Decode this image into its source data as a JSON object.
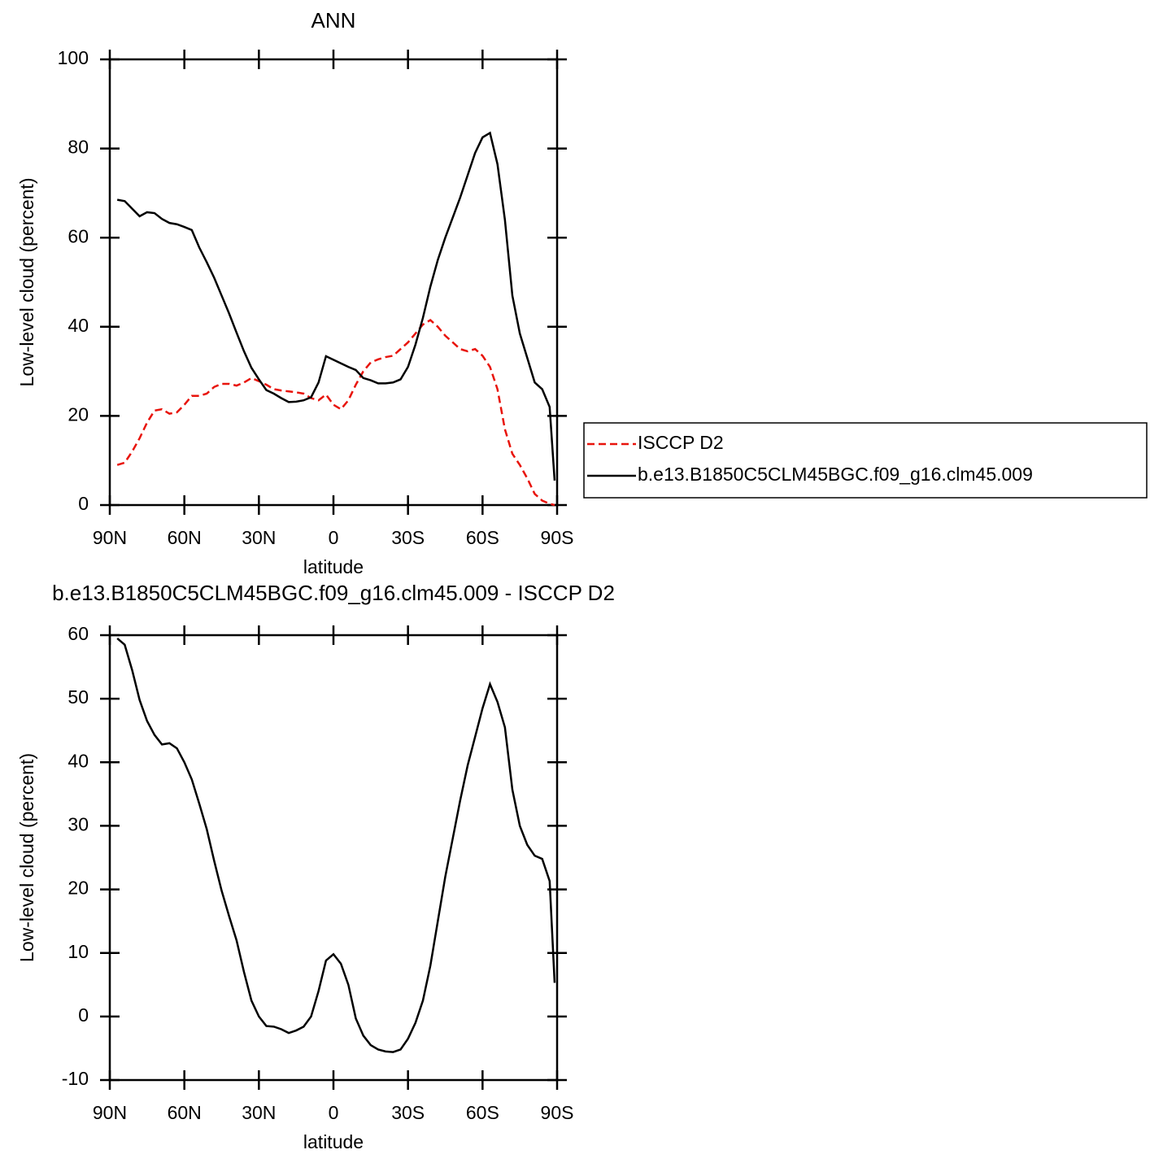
{
  "chart_data": [
    {
      "type": "line",
      "title": "ANN",
      "xlabel": "latitude",
      "ylabel": "Low-level cloud (percent)",
      "x": [
        87,
        84,
        81,
        78,
        75,
        72,
        69,
        66,
        63,
        60,
        57,
        54,
        51,
        48,
        45,
        42,
        39,
        36,
        33,
        30,
        27,
        24,
        21,
        18,
        15,
        12,
        9,
        6,
        3,
        0,
        -3,
        -6,
        -9,
        -12,
        -15,
        -18,
        -21,
        -24,
        -27,
        -30,
        -33,
        -36,
        -39,
        -42,
        -45,
        -48,
        -51,
        -54,
        -57,
        -60,
        -63,
        -66,
        -69,
        -72,
        -75,
        -78,
        -81,
        -84,
        -87,
        -89
      ],
      "series": [
        {
          "name": "ISCCP D2",
          "color": "#e8140c",
          "dashed": true,
          "values": [
            9,
            9.5,
            12,
            15,
            18.5,
            21.2,
            21.5,
            20.5,
            20.8,
            22.5,
            24.5,
            24.5,
            25,
            26.5,
            27.2,
            27.2,
            26.8,
            27.5,
            28.5,
            27.8,
            27,
            26,
            25.7,
            25.5,
            25.3,
            25,
            24,
            23.5,
            24.8,
            22.5,
            21.5,
            23.5,
            27,
            30,
            32,
            32.7,
            33.2,
            33.5,
            35,
            36.5,
            38.5,
            40.5,
            41.5,
            40,
            38,
            36.5,
            35,
            34.5,
            35,
            33.5,
            31,
            26,
            17,
            11.5,
            9,
            6,
            2.5,
            1,
            0.3,
            0
          ]
        },
        {
          "name": "b.e13.B1850C5CLM45BGC.f09_g16.clm45.009",
          "color": "#000000",
          "dashed": false,
          "values": [
            68.5,
            68.2,
            66.5,
            64.8,
            65.7,
            65.5,
            64.2,
            63.3,
            63,
            62.4,
            61.7,
            57.8,
            54.5,
            51,
            47,
            43,
            38.7,
            34.5,
            30.8,
            28.2,
            25.8,
            25,
            24,
            23.1,
            23.2,
            23.5,
            24.2,
            27.5,
            33.4,
            32.6,
            31.8,
            31,
            30.3,
            28.5,
            28,
            27.3,
            27.3,
            27.5,
            28.2,
            31,
            36,
            42,
            49,
            55,
            60,
            64.5,
            69,
            74,
            79,
            82.5,
            83.5,
            76.5,
            64,
            47,
            38.5,
            33,
            27.5,
            26,
            22,
            5.5
          ]
        }
      ],
      "xlim": [
        90,
        -90
      ],
      "xticks": [
        {
          "value": 90,
          "label": "90N"
        },
        {
          "value": 60,
          "label": "60N"
        },
        {
          "value": 30,
          "label": "30N"
        },
        0,
        {
          "value": -30,
          "label": "30S"
        },
        {
          "value": -60,
          "label": "60S"
        },
        {
          "value": -90,
          "label": "90S"
        }
      ],
      "ylim": [
        0,
        100
      ],
      "yticks": [
        0,
        20,
        40,
        60,
        80,
        100
      ],
      "legend": "right"
    },
    {
      "type": "line",
      "title": "b.e13.B1850C5CLM45BGC.f09_g16.clm45.009 - ISCCP D2",
      "xlabel": "latitude",
      "ylabel": "Low-level cloud (percent)",
      "x": [
        87,
        84,
        81,
        78,
        75,
        72,
        69,
        66,
        63,
        60,
        57,
        54,
        51,
        48,
        45,
        42,
        39,
        36,
        33,
        30,
        27,
        24,
        21,
        18,
        15,
        12,
        9,
        6,
        3,
        0,
        -3,
        -6,
        -9,
        -12,
        -15,
        -18,
        -21,
        -24,
        -27,
        -30,
        -33,
        -36,
        -39,
        -42,
        -45,
        -48,
        -51,
        -54,
        -57,
        -60,
        -63,
        -66,
        -69,
        -72,
        -75,
        -78,
        -81,
        -84,
        -87,
        -89
      ],
      "series": [
        {
          "color": "#000000",
          "dashed": false,
          "values": [
            59.5,
            58.5,
            54.5,
            49.8,
            46.5,
            44.3,
            42.8,
            43,
            42.2,
            40,
            37.3,
            33.5,
            29.5,
            24.5,
            19.8,
            15.8,
            12,
            7,
            2.5,
            0,
            -1.5,
            -1.6,
            -2,
            -2.6,
            -2.2,
            -1.6,
            0,
            4,
            8.8,
            9.8,
            8.3,
            5,
            -0.3,
            -3,
            -4.5,
            -5.2,
            -5.5,
            -5.6,
            -5.2,
            -3.5,
            -1,
            2.5,
            8,
            15,
            22,
            28,
            34,
            39.5,
            44,
            48.5,
            52.3,
            49.5,
            45.5,
            35.7,
            30,
            27,
            25.3,
            24.8,
            21.3,
            5.3
          ]
        }
      ],
      "xlim": [
        90,
        -90
      ],
      "xticks": [
        {
          "value": 90,
          "label": "90N"
        },
        {
          "value": 60,
          "label": "60N"
        },
        {
          "value": 30,
          "label": "30N"
        },
        0,
        {
          "value": -30,
          "label": "30S"
        },
        {
          "value": -60,
          "label": "60S"
        },
        {
          "value": -90,
          "label": "90S"
        }
      ],
      "ylim": [
        -10,
        60
      ],
      "yticks": [
        -10,
        0,
        10,
        20,
        30,
        40,
        50,
        60
      ]
    }
  ]
}
